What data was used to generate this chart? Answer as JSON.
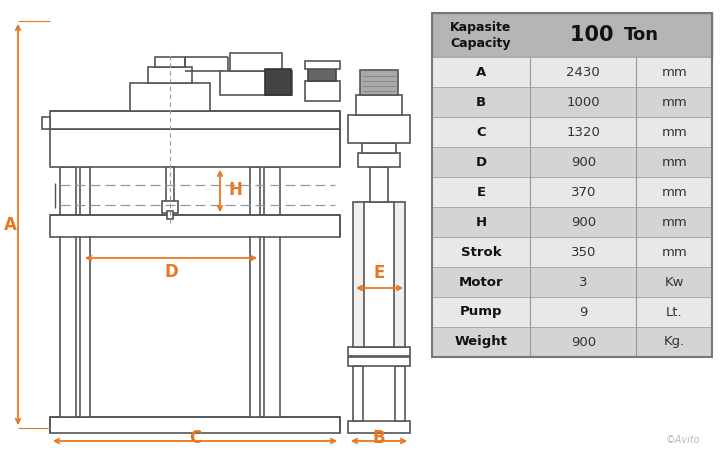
{
  "bg_color": "#ffffff",
  "orange": "#E87722",
  "gray_line": "#555555",
  "gray_med": "#888888",
  "gray_fill": "#cccccc",
  "capacity_label": "Kapasite\nCapacity",
  "capacity_value": "100 Ton",
  "rows": [
    [
      "A",
      "2430",
      "mm"
    ],
    [
      "B",
      "1000",
      "mm"
    ],
    [
      "C",
      "1320",
      "mm"
    ],
    [
      "D",
      "900",
      "mm"
    ],
    [
      "E",
      "370",
      "mm"
    ],
    [
      "H",
      "900",
      "mm"
    ],
    [
      "Strok",
      "350",
      "mm"
    ],
    [
      "Motor",
      "3",
      "Kw"
    ],
    [
      "Pump",
      "9",
      "Lt."
    ],
    [
      "Weight",
      "900",
      "Kg."
    ]
  ],
  "avito_text": "©Avito"
}
